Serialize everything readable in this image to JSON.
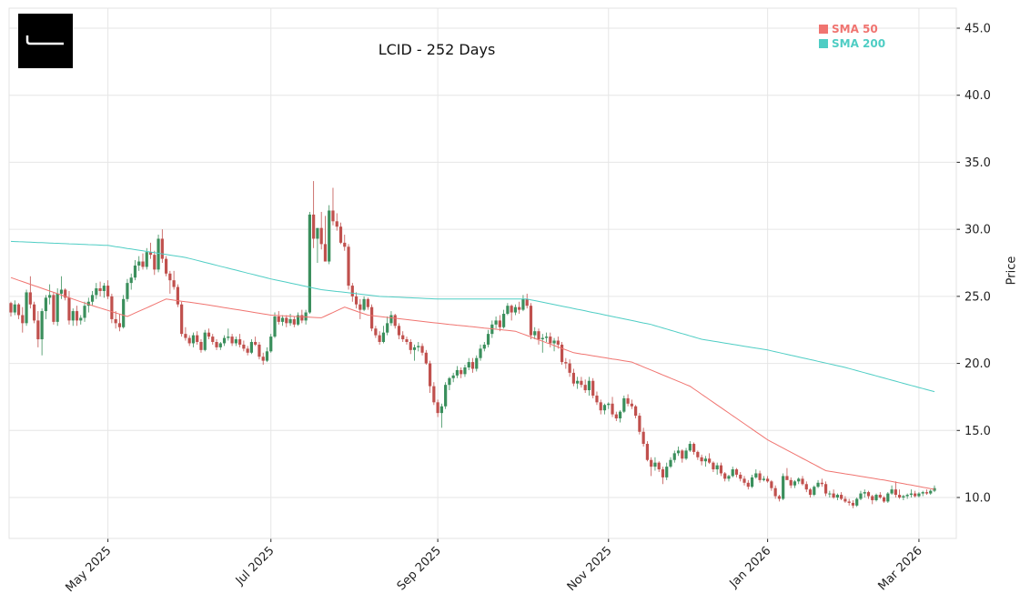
{
  "chart_data": {
    "type": "candlestick",
    "title": "LCID - 252 Days",
    "xlabel": "",
    "ylabel": "Price",
    "ylim": [
      7.0,
      46.5
    ],
    "y_ticks": [
      "10.0",
      "15.0",
      "20.0",
      "25.0",
      "30.0",
      "35.0",
      "40.0",
      "45.0"
    ],
    "x_ticks": [
      {
        "label": "May 2025",
        "index": 25
      },
      {
        "label": "Jul 2025",
        "index": 67
      },
      {
        "label": "Sep 2025",
        "index": 110
      },
      {
        "label": "Nov 2025",
        "index": 154
      },
      {
        "label": "Jan 2026",
        "index": 195
      },
      {
        "label": "Mar 2026",
        "index": 234
      }
    ],
    "grid": true,
    "legend_position": "upper right",
    "legend": [
      {
        "label": "SMA 50",
        "color": "#f07470"
      },
      {
        "label": "SMA 200",
        "color": "#4ecdc4"
      }
    ],
    "colors": {
      "up": "#3a8f5c",
      "down": "#c0504d",
      "sma50": "#f07470",
      "sma200": "#4ecdc4",
      "grid": "#e6e6e6",
      "axis": "#222222"
    },
    "sma200_keypoints": [
      [
        0,
        29.1
      ],
      [
        25,
        28.8
      ],
      [
        45,
        27.9
      ],
      [
        67,
        26.3
      ],
      [
        80,
        25.5
      ],
      [
        95,
        25.0
      ],
      [
        110,
        24.8
      ],
      [
        133,
        24.8
      ],
      [
        150,
        23.8
      ],
      [
        165,
        22.9
      ],
      [
        178,
        21.8
      ],
      [
        195,
        21.0
      ],
      [
        215,
        19.7
      ],
      [
        234,
        18.2
      ],
      [
        251,
        16.9
      ]
    ],
    "sma50_keypoints": [
      [
        0,
        26.4
      ],
      [
        10,
        25.4
      ],
      [
        20,
        24.4
      ],
      [
        30,
        23.5
      ],
      [
        40,
        24.8
      ],
      [
        50,
        24.4
      ],
      [
        67,
        23.6
      ],
      [
        80,
        23.4
      ],
      [
        86,
        24.2
      ],
      [
        92,
        23.6
      ],
      [
        110,
        23.0
      ],
      [
        130,
        22.4
      ],
      [
        145,
        20.8
      ],
      [
        160,
        20.1
      ],
      [
        175,
        18.3
      ],
      [
        195,
        14.3
      ],
      [
        210,
        12.0
      ],
      [
        225,
        11.3
      ],
      [
        240,
        10.5
      ],
      [
        251,
        10.4
      ]
    ],
    "candles": [
      [
        24.5,
        24.6,
        23.5,
        23.8
      ],
      [
        23.8,
        24.7,
        23.6,
        24.4
      ],
      [
        24.4,
        24.5,
        23.3,
        23.6
      ],
      [
        23.6,
        24.2,
        22.3,
        23.0
      ],
      [
        23.0,
        25.5,
        22.8,
        25.3
      ],
      [
        25.3,
        26.5,
        24.1,
        24.4
      ],
      [
        24.4,
        24.6,
        23.0,
        23.2
      ],
      [
        23.2,
        23.9,
        21.2,
        21.8
      ],
      [
        21.8,
        24.1,
        20.6,
        23.9
      ],
      [
        23.9,
        25.1,
        23.3,
        24.9
      ],
      [
        24.9,
        25.9,
        24.4,
        25.1
      ],
      [
        25.1,
        25.3,
        22.9,
        23.1
      ],
      [
        23.1,
        25.6,
        22.8,
        25.2
      ],
      [
        25.2,
        26.5,
        24.8,
        25.5
      ],
      [
        25.5,
        25.6,
        24.7,
        24.9
      ],
      [
        24.9,
        25.4,
        22.9,
        23.2
      ],
      [
        23.2,
        24.1,
        22.8,
        23.9
      ],
      [
        23.9,
        24.3,
        22.8,
        23.2
      ],
      [
        23.2,
        23.6,
        22.9,
        23.4
      ],
      [
        23.4,
        24.6,
        23.1,
        24.3
      ],
      [
        24.3,
        24.9,
        23.8,
        24.6
      ],
      [
        24.6,
        25.4,
        24.3,
        25.1
      ],
      [
        25.1,
        26.0,
        24.8,
        25.6
      ],
      [
        25.6,
        26.1,
        25.0,
        25.4
      ],
      [
        25.4,
        26.0,
        24.9,
        25.8
      ],
      [
        25.8,
        26.2,
        24.8,
        25.0
      ],
      [
        25.0,
        25.2,
        23.0,
        23.3
      ],
      [
        23.3,
        23.9,
        22.6,
        23.0
      ],
      [
        23.0,
        23.7,
        22.4,
        22.7
      ],
      [
        22.7,
        25.1,
        22.6,
        24.8
      ],
      [
        24.8,
        26.3,
        24.6,
        26.0
      ],
      [
        26.0,
        26.7,
        25.5,
        26.4
      ],
      [
        26.4,
        27.7,
        26.2,
        27.3
      ],
      [
        27.3,
        28.0,
        26.9,
        27.6
      ],
      [
        27.6,
        28.2,
        27.0,
        27.2
      ],
      [
        27.2,
        28.6,
        27.0,
        28.3
      ],
      [
        28.3,
        29.0,
        27.8,
        28.1
      ],
      [
        28.1,
        28.4,
        26.6,
        27.0
      ],
      [
        27.0,
        29.6,
        26.8,
        29.3
      ],
      [
        29.3,
        30.0,
        27.5,
        27.8
      ],
      [
        27.8,
        28.0,
        26.5,
        26.7
      ],
      [
        26.7,
        26.9,
        25.2,
        26.2
      ],
      [
        26.2,
        26.9,
        25.5,
        25.7
      ],
      [
        25.7,
        25.9,
        24.2,
        24.4
      ],
      [
        24.4,
        24.6,
        22.0,
        22.2
      ],
      [
        22.2,
        22.7,
        21.7,
        21.9
      ],
      [
        21.9,
        22.1,
        21.3,
        21.5
      ],
      [
        21.5,
        22.3,
        21.2,
        22.1
      ],
      [
        22.1,
        22.4,
        21.4,
        21.6
      ],
      [
        21.6,
        21.8,
        20.8,
        21.0
      ],
      [
        21.0,
        22.5,
        20.9,
        22.3
      ],
      [
        22.3,
        22.6,
        21.8,
        22.0
      ],
      [
        22.0,
        22.2,
        21.4,
        21.6
      ],
      [
        21.6,
        21.8,
        21.0,
        21.2
      ],
      [
        21.2,
        21.6,
        21.0,
        21.5
      ],
      [
        21.5,
        22.1,
        21.3,
        21.9
      ],
      [
        21.9,
        22.6,
        21.7,
        22.0
      ],
      [
        22.0,
        22.2,
        21.3,
        21.5
      ],
      [
        21.5,
        22.0,
        21.3,
        21.8
      ],
      [
        21.8,
        22.2,
        21.2,
        21.4
      ],
      [
        21.4,
        21.7,
        20.9,
        21.1
      ],
      [
        21.1,
        21.3,
        20.6,
        20.8
      ],
      [
        20.8,
        21.8,
        20.7,
        21.6
      ],
      [
        21.6,
        22.0,
        21.3,
        21.4
      ],
      [
        21.4,
        21.6,
        20.3,
        20.5
      ],
      [
        20.5,
        20.8,
        19.9,
        20.2
      ],
      [
        20.2,
        21.2,
        20.1,
        20.9
      ],
      [
        20.9,
        22.2,
        20.8,
        22.0
      ],
      [
        22.0,
        23.8,
        21.9,
        23.5
      ],
      [
        23.5,
        23.9,
        22.9,
        23.1
      ],
      [
        23.1,
        23.6,
        22.8,
        23.4
      ],
      [
        23.4,
        23.6,
        22.7,
        23.0
      ],
      [
        23.0,
        23.7,
        22.8,
        23.3
      ],
      [
        23.3,
        23.5,
        22.7,
        22.9
      ],
      [
        22.9,
        23.8,
        22.8,
        23.6
      ],
      [
        23.6,
        24.0,
        23.0,
        23.2
      ],
      [
        23.2,
        24.0,
        22.9,
        23.8
      ],
      [
        23.8,
        31.3,
        23.7,
        31.1
      ],
      [
        31.1,
        33.6,
        28.6,
        29.3
      ],
      [
        29.3,
        29.9,
        27.5,
        30.1
      ],
      [
        30.1,
        31.3,
        28.5,
        28.9
      ],
      [
        28.9,
        31.0,
        28.2,
        27.6
      ],
      [
        27.6,
        31.8,
        27.4,
        31.4
      ],
      [
        31.4,
        33.1,
        30.3,
        30.6
      ],
      [
        30.6,
        31.2,
        29.9,
        30.2
      ],
      [
        30.2,
        30.5,
        28.9,
        29.0
      ],
      [
        29.0,
        29.6,
        28.4,
        28.7
      ],
      [
        28.7,
        28.9,
        25.5,
        25.8
      ],
      [
        25.8,
        26.0,
        24.6,
        25.0
      ],
      [
        25.0,
        25.3,
        24.1,
        24.4
      ],
      [
        24.4,
        24.8,
        23.3,
        24.0
      ],
      [
        24.0,
        25.0,
        23.9,
        24.8
      ],
      [
        24.8,
        24.9,
        24.0,
        24.2
      ],
      [
        24.2,
        24.4,
        22.4,
        22.6
      ],
      [
        22.6,
        22.8,
        21.9,
        22.1
      ],
      [
        22.1,
        22.4,
        21.4,
        21.6
      ],
      [
        21.6,
        22.8,
        21.5,
        22.3
      ],
      [
        22.3,
        23.5,
        22.1,
        23.0
      ],
      [
        23.0,
        23.9,
        22.8,
        23.6
      ],
      [
        23.6,
        23.7,
        22.6,
        22.8
      ],
      [
        22.8,
        23.0,
        21.8,
        22.1
      ],
      [
        22.1,
        22.4,
        21.6,
        21.8
      ],
      [
        21.8,
        22.0,
        21.4,
        21.6
      ],
      [
        21.6,
        21.8,
        20.7,
        21.0
      ],
      [
        21.0,
        21.4,
        20.2,
        21.2
      ],
      [
        21.2,
        21.6,
        20.9,
        21.3
      ],
      [
        21.3,
        21.5,
        20.6,
        20.8
      ],
      [
        20.8,
        21.0,
        19.9,
        20.0
      ],
      [
        20.0,
        20.2,
        17.8,
        18.3
      ],
      [
        18.3,
        18.6,
        16.9,
        17.1
      ],
      [
        17.1,
        17.3,
        16.0,
        16.3
      ],
      [
        16.3,
        17.0,
        15.2,
        16.8
      ],
      [
        16.8,
        18.6,
        16.6,
        18.4
      ],
      [
        18.4,
        19.0,
        18.0,
        18.9
      ],
      [
        18.9,
        19.3,
        18.6,
        19.1
      ],
      [
        19.1,
        19.8,
        18.9,
        19.5
      ],
      [
        19.5,
        19.7,
        18.9,
        19.2
      ],
      [
        19.2,
        19.9,
        19.0,
        19.7
      ],
      [
        19.7,
        20.4,
        19.5,
        20.1
      ],
      [
        20.1,
        20.4,
        19.3,
        19.6
      ],
      [
        19.6,
        20.6,
        19.4,
        20.4
      ],
      [
        20.4,
        21.4,
        20.2,
        21.1
      ],
      [
        21.1,
        21.6,
        20.9,
        21.4
      ],
      [
        21.4,
        22.5,
        21.2,
        22.2
      ],
      [
        22.2,
        23.2,
        21.9,
        22.9
      ],
      [
        22.9,
        23.5,
        22.6,
        23.2
      ],
      [
        23.2,
        23.6,
        22.4,
        22.7
      ],
      [
        22.7,
        24.0,
        22.6,
        23.7
      ],
      [
        23.7,
        24.5,
        23.6,
        24.3
      ],
      [
        24.3,
        24.4,
        23.2,
        23.8
      ],
      [
        23.8,
        24.4,
        23.6,
        24.2
      ],
      [
        24.2,
        24.6,
        23.7,
        24.0
      ],
      [
        24.0,
        25.1,
        23.9,
        24.8
      ],
      [
        24.8,
        25.2,
        24.1,
        24.3
      ],
      [
        24.3,
        24.5,
        21.8,
        22.1
      ],
      [
        22.1,
        22.7,
        21.8,
        22.4
      ],
      [
        22.4,
        22.6,
        21.4,
        21.8
      ],
      [
        21.8,
        22.2,
        20.8,
        21.9
      ],
      [
        21.9,
        22.3,
        21.6,
        22.0
      ],
      [
        22.0,
        22.3,
        21.2,
        21.5
      ],
      [
        21.5,
        21.9,
        20.9,
        21.7
      ],
      [
        21.7,
        22.0,
        21.1,
        21.4
      ],
      [
        21.4,
        21.6,
        19.9,
        20.1
      ],
      [
        20.1,
        20.4,
        19.6,
        20.0
      ],
      [
        20.0,
        20.3,
        19.0,
        19.3
      ],
      [
        19.3,
        19.6,
        18.3,
        18.5
      ],
      [
        18.5,
        19.0,
        18.1,
        18.7
      ],
      [
        18.7,
        19.0,
        18.2,
        18.4
      ],
      [
        18.4,
        18.8,
        17.8,
        18.0
      ],
      [
        18.0,
        19.0,
        17.6,
        18.7
      ],
      [
        18.7,
        18.9,
        17.4,
        17.6
      ],
      [
        17.6,
        17.9,
        16.9,
        17.1
      ],
      [
        17.1,
        17.3,
        16.2,
        16.5
      ],
      [
        16.5,
        17.0,
        16.2,
        16.9
      ],
      [
        16.9,
        17.1,
        16.6,
        17.0
      ],
      [
        17.0,
        17.5,
        16.0,
        16.2
      ],
      [
        16.2,
        16.4,
        15.7,
        15.9
      ],
      [
        15.9,
        16.5,
        15.6,
        16.4
      ],
      [
        16.4,
        17.6,
        16.3,
        17.4
      ],
      [
        17.4,
        17.7,
        16.8,
        17.0
      ],
      [
        17.0,
        17.3,
        16.6,
        16.8
      ],
      [
        16.8,
        16.9,
        15.9,
        16.1
      ],
      [
        16.1,
        16.3,
        14.7,
        14.9
      ],
      [
        14.9,
        15.2,
        13.8,
        14.0
      ],
      [
        14.0,
        14.2,
        12.7,
        12.8
      ],
      [
        12.8,
        13.0,
        11.6,
        12.3
      ],
      [
        12.3,
        13.0,
        12.0,
        12.6
      ],
      [
        12.6,
        12.7,
        11.9,
        12.1
      ],
      [
        12.1,
        12.3,
        11.0,
        11.5
      ],
      [
        11.5,
        12.6,
        11.3,
        12.3
      ],
      [
        12.3,
        13.0,
        12.2,
        12.8
      ],
      [
        12.8,
        13.5,
        12.6,
        13.3
      ],
      [
        13.3,
        13.8,
        13.1,
        13.5
      ],
      [
        13.5,
        13.6,
        12.6,
        12.9
      ],
      [
        12.9,
        13.7,
        12.8,
        13.5
      ],
      [
        13.5,
        14.2,
        13.4,
        14.0
      ],
      [
        14.0,
        14.1,
        13.2,
        13.4
      ],
      [
        13.4,
        13.5,
        12.8,
        13.0
      ],
      [
        13.0,
        13.2,
        12.4,
        12.7
      ],
      [
        12.7,
        13.1,
        12.3,
        12.9
      ],
      [
        12.9,
        13.3,
        12.5,
        12.6
      ],
      [
        12.6,
        12.7,
        11.9,
        12.1
      ],
      [
        12.1,
        12.6,
        11.7,
        12.4
      ],
      [
        12.4,
        12.6,
        11.6,
        11.8
      ],
      [
        11.8,
        11.9,
        11.2,
        11.4
      ],
      [
        11.4,
        11.7,
        11.2,
        11.6
      ],
      [
        11.6,
        12.3,
        11.5,
        12.1
      ],
      [
        12.1,
        12.2,
        11.5,
        11.7
      ],
      [
        11.7,
        11.9,
        11.2,
        11.4
      ],
      [
        11.4,
        11.6,
        10.9,
        11.1
      ],
      [
        11.1,
        11.3,
        10.6,
        10.8
      ],
      [
        10.8,
        11.7,
        10.7,
        11.5
      ],
      [
        11.5,
        12.1,
        11.4,
        11.8
      ],
      [
        11.8,
        12.0,
        11.1,
        11.3
      ],
      [
        11.3,
        11.6,
        11.2,
        11.4
      ],
      [
        11.4,
        11.6,
        11.1,
        11.2
      ],
      [
        11.2,
        11.3,
        10.5,
        10.7
      ],
      [
        10.7,
        10.9,
        9.9,
        10.1
      ],
      [
        10.1,
        10.2,
        9.7,
        9.9
      ],
      [
        9.9,
        11.8,
        9.8,
        11.6
      ],
      [
        11.6,
        12.2,
        11.4,
        11.3
      ],
      [
        11.3,
        11.5,
        10.7,
        10.9
      ],
      [
        10.9,
        11.3,
        10.7,
        11.2
      ],
      [
        11.2,
        11.5,
        11.0,
        11.4
      ],
      [
        11.4,
        11.6,
        10.9,
        11.0
      ],
      [
        11.0,
        11.2,
        10.4,
        10.6
      ],
      [
        10.6,
        10.7,
        10.0,
        10.2
      ],
      [
        10.2,
        10.9,
        10.1,
        10.8
      ],
      [
        10.8,
        11.3,
        10.7,
        11.1
      ],
      [
        11.1,
        11.4,
        10.8,
        11.0
      ],
      [
        11.0,
        11.2,
        10.1,
        10.3
      ],
      [
        10.3,
        10.5,
        10.0,
        10.3
      ],
      [
        10.3,
        10.6,
        9.9,
        10.0
      ],
      [
        10.0,
        10.3,
        9.8,
        10.2
      ],
      [
        10.2,
        10.4,
        9.8,
        9.9
      ],
      [
        9.9,
        10.1,
        9.6,
        9.7
      ],
      [
        9.7,
        9.9,
        9.4,
        9.6
      ],
      [
        9.6,
        9.8,
        9.2,
        9.4
      ],
      [
        9.4,
        10.0,
        9.3,
        9.9
      ],
      [
        9.9,
        10.5,
        9.8,
        10.3
      ],
      [
        10.3,
        10.6,
        10.0,
        10.4
      ],
      [
        10.4,
        10.5,
        9.9,
        10.1
      ],
      [
        10.1,
        10.2,
        9.5,
        9.8
      ],
      [
        9.8,
        10.3,
        9.7,
        10.2
      ],
      [
        10.2,
        10.4,
        9.9,
        10.0
      ],
      [
        10.0,
        10.1,
        9.6,
        9.7
      ],
      [
        9.7,
        10.4,
        9.6,
        10.3
      ],
      [
        10.3,
        10.9,
        10.2,
        10.6
      ],
      [
        10.6,
        11.2,
        10.0,
        10.2
      ],
      [
        10.2,
        10.6,
        9.9,
        10.0
      ],
      [
        10.0,
        10.2,
        9.8,
        10.1
      ],
      [
        10.1,
        10.3,
        9.9,
        10.2
      ],
      [
        10.2,
        10.6,
        10.0,
        10.3
      ],
      [
        10.3,
        10.5,
        10.0,
        10.1
      ],
      [
        10.1,
        10.4,
        10.0,
        10.3
      ],
      [
        10.3,
        10.5,
        10.1,
        10.4
      ],
      [
        10.4,
        10.6,
        10.2,
        10.3
      ],
      [
        10.3,
        10.6,
        10.2,
        10.5
      ],
      [
        10.5,
        10.9,
        10.4,
        10.7
      ]
    ]
  }
}
